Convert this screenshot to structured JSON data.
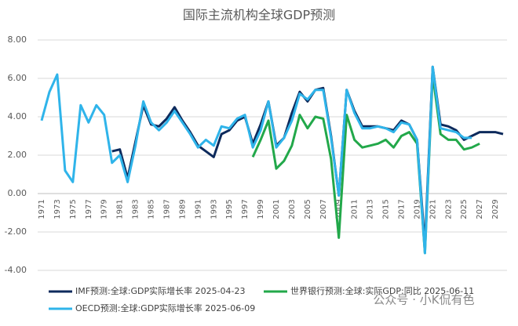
{
  "chart_data": {
    "type": "line",
    "title": "国际主流机构全球GDP预测",
    "categories": [
      "1971",
      null,
      "1973",
      null,
      "1975",
      null,
      "1977",
      null,
      "1979",
      null,
      "1981",
      null,
      "1983",
      null,
      "1985",
      null,
      "1987",
      null,
      "1989",
      null,
      "1991",
      null,
      "1993",
      null,
      "1995",
      null,
      "1997",
      null,
      "1999",
      null,
      "2001",
      null,
      "2003",
      null,
      "2005",
      null,
      "2007",
      null,
      "2009",
      null,
      "2011",
      null,
      "2013",
      null,
      "2015",
      null,
      "2017",
      null,
      "2019",
      null,
      "2021",
      null,
      "2023",
      null,
      "2025",
      null,
      "2027",
      null,
      "2029",
      null
    ],
    "series": [
      {
        "name": "IMF预测:全球:GDP实际增长率 2025-04-23",
        "color": "#0d2a5c",
        "values": [
          null,
          null,
          null,
          null,
          null,
          null,
          null,
          null,
          null,
          2.2,
          2.3,
          0.8,
          2.7,
          4.6,
          3.6,
          3.5,
          3.9,
          4.5,
          3.8,
          3.2,
          2.5,
          2.2,
          1.9,
          3.1,
          3.3,
          3.8,
          4.0,
          2.6,
          3.6,
          4.8,
          2.5,
          2.9,
          4.2,
          5.3,
          4.8,
          5.4,
          5.5,
          3.0,
          -0.1,
          5.4,
          4.3,
          3.5,
          3.5,
          3.5,
          3.4,
          3.3,
          3.8,
          3.6,
          2.8,
          -2.7,
          6.6,
          3.6,
          3.5,
          3.3,
          2.8,
          3.0,
          3.2,
          3.2,
          3.2,
          3.1
        ]
      },
      {
        "name": "世界银行预测:全球:实际GDP:同比 2025-06-11",
        "color": "#22a84a",
        "values": [
          null,
          null,
          null,
          null,
          null,
          null,
          null,
          null,
          null,
          null,
          null,
          null,
          null,
          null,
          null,
          null,
          null,
          null,
          null,
          null,
          null,
          null,
          null,
          null,
          null,
          null,
          null,
          1.9,
          2.8,
          3.8,
          1.3,
          1.7,
          2.5,
          4.1,
          3.4,
          4.0,
          3.9,
          1.8,
          -2.3,
          4.1,
          2.8,
          2.4,
          2.5,
          2.6,
          2.8,
          2.4,
          3.0,
          3.2,
          2.6,
          -3.1,
          6.2,
          3.1,
          2.8,
          2.8,
          2.3,
          2.4,
          2.6,
          null,
          null,
          null
        ]
      },
      {
        "name": "OECD预测:全球:GDP实际增长率 2025-06-09",
        "color": "#2fb4ea",
        "values": [
          3.8,
          5.3,
          6.2,
          1.2,
          0.6,
          4.6,
          3.7,
          4.6,
          4.1,
          1.6,
          2.0,
          0.6,
          2.5,
          4.8,
          3.7,
          3.3,
          3.7,
          4.3,
          3.7,
          3.1,
          2.4,
          2.8,
          2.5,
          3.5,
          3.4,
          3.9,
          4.1,
          2.4,
          3.3,
          4.8,
          2.4,
          2.9,
          3.8,
          5.2,
          4.9,
          5.4,
          5.4,
          2.9,
          -0.1,
          5.4,
          4.2,
          3.4,
          3.4,
          3.5,
          3.4,
          3.2,
          3.7,
          3.6,
          2.8,
          -3.1,
          6.6,
          3.4,
          3.3,
          3.2,
          2.9,
          2.9,
          null,
          null,
          null,
          null
        ]
      }
    ],
    "ylim": [
      -4,
      8
    ],
    "yticks": [
      {
        "value": -4,
        "label": "-4.00"
      },
      {
        "value": -2,
        "label": "-2.00"
      },
      {
        "value": 0,
        "label": "0.00"
      },
      {
        "value": 2,
        "label": "2.00"
      },
      {
        "value": 4,
        "label": "4.00"
      },
      {
        "value": 6,
        "label": "6.00"
      },
      {
        "value": 8,
        "label": "8.00"
      }
    ],
    "grid": true,
    "watermark": "公众号 · 小K侃有色"
  }
}
